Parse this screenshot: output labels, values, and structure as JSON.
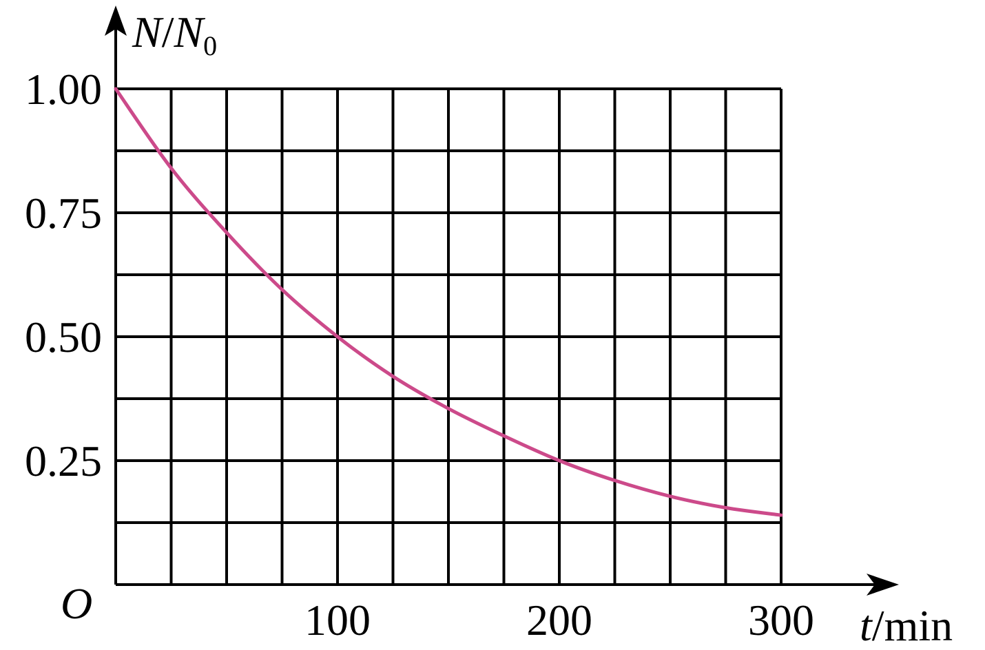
{
  "chart_data": {
    "type": "line",
    "xlabel": {
      "var": "t",
      "unit": "/min"
    },
    "ylabel": {
      "var": "N",
      "sep": "/",
      "var2": "N",
      "sub": "0"
    },
    "origin_label": "O",
    "xlim": [
      0,
      300
    ],
    "ylim": [
      0,
      1.0
    ],
    "x_ticks": [
      100,
      200,
      300
    ],
    "x_tick_labels": [
      "100",
      "200",
      "300"
    ],
    "y_ticks": [
      0.25,
      0.5,
      0.75,
      1.0
    ],
    "y_tick_labels": [
      "0.25",
      "0.50",
      "0.75",
      "1.00"
    ],
    "grid": true,
    "grid_x_step": 25,
    "grid_y_step": 0.125,
    "series": [
      {
        "color": "#cc4a8a",
        "x": [
          0,
          25,
          50,
          75,
          100,
          125,
          150,
          175,
          200,
          225,
          250,
          275,
          300
        ],
        "y": [
          1.0,
          0.84,
          0.71,
          0.595,
          0.5,
          0.42,
          0.355,
          0.3,
          0.25,
          0.21,
          0.178,
          0.155,
          0.14
        ]
      }
    ]
  }
}
